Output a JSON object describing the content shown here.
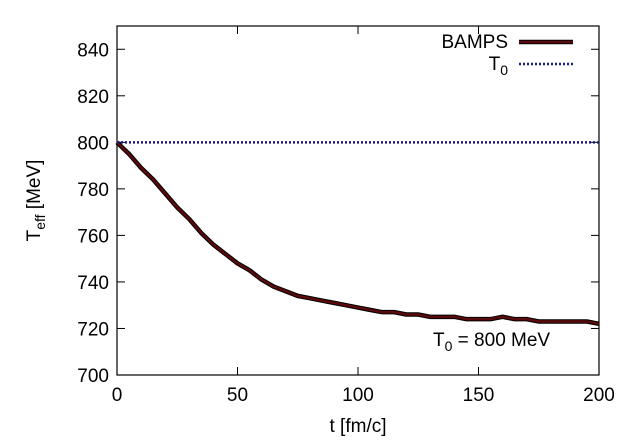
{
  "chart_data": {
    "type": "line",
    "xlabel": "t [fm/c]",
    "ylabel": {
      "main": "T",
      "sub": "eff",
      "rest": " [MeV]"
    },
    "annotation": {
      "main": "T",
      "sub": "0",
      "rest": " = 800 MeV"
    },
    "xlim": [
      0,
      200
    ],
    "xticks": [
      0,
      50,
      100,
      150,
      200
    ],
    "ylim": [
      700,
      850
    ],
    "yticks": [
      700,
      720,
      740,
      760,
      780,
      800,
      820,
      840
    ],
    "legend": "upper right",
    "series": [
      {
        "name": "BAMPS",
        "color": "#5a0a0a",
        "style": "solid",
        "x": [
          0,
          5,
          10,
          15,
          20,
          25,
          30,
          35,
          40,
          45,
          50,
          55,
          60,
          65,
          70,
          75,
          80,
          85,
          90,
          95,
          100,
          105,
          110,
          115,
          120,
          125,
          130,
          135,
          140,
          145,
          150,
          155,
          160,
          165,
          170,
          175,
          180,
          185,
          190,
          195,
          200
        ],
        "values": [
          800,
          795,
          789,
          784,
          778,
          772,
          767,
          761,
          756,
          752,
          748,
          745,
          741,
          738,
          736,
          734,
          733,
          732,
          731,
          730,
          729,
          728,
          727,
          727,
          726,
          726,
          725,
          725,
          725,
          724,
          724,
          724,
          725,
          724,
          724,
          723,
          723,
          723,
          723,
          723,
          722
        ]
      },
      {
        "name": "T",
        "name_sub": "0",
        "color": "#1a1a8c",
        "style": "dotted",
        "x": [
          0,
          200
        ],
        "values": [
          800,
          800
        ]
      }
    ]
  }
}
